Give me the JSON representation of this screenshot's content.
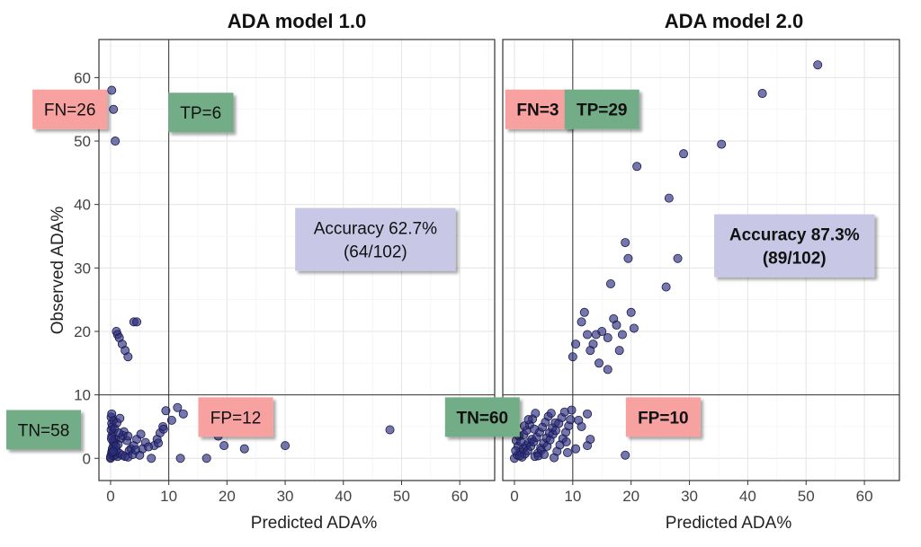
{
  "chart_data": [
    {
      "type": "scatter",
      "title": "ADA model 1.0",
      "xlabel": "Predicted ADA%",
      "ylabel": "Observed ADA%",
      "xlim": [
        -2,
        66
      ],
      "ylim": [
        -3.5,
        66
      ],
      "xticks": [
        0,
        10,
        20,
        30,
        40,
        50,
        60
      ],
      "yticks": [
        0,
        10,
        20,
        30,
        40,
        50,
        60
      ],
      "tick_labels": [
        "0",
        "10",
        "20",
        "30",
        "40",
        "50",
        "60"
      ],
      "threshold": {
        "x": 10,
        "y": 10
      },
      "grid": true,
      "point_color": "#2b2d7e",
      "annotations": [
        {
          "text": "FN=26",
          "x": -7,
          "y": 55,
          "color": "#f7a1a1",
          "bold": false
        },
        {
          "text": "TP=6",
          "x": 15.5,
          "y": 54.5,
          "color": "#73ad87",
          "bold": false
        },
        {
          "text": "Accuracy 62.7%",
          "text2": "(64/102)",
          "x": 45.5,
          "y": 34.5,
          "color": "#c8c8e6",
          "bold": false
        },
        {
          "text": "FP=12",
          "x": 21.5,
          "y": 6.5,
          "color": "#f7a1a1",
          "bold": false
        },
        {
          "text": "TN=58",
          "x": -11.5,
          "y": 4.5,
          "color": "#73ad87",
          "bold": false
        }
      ],
      "points": [
        [
          0,
          0
        ],
        [
          0.1,
          0.5
        ],
        [
          0.2,
          1
        ],
        [
          0.3,
          1.5
        ],
        [
          0.5,
          2
        ],
        [
          0.6,
          2.5
        ],
        [
          0.8,
          3
        ],
        [
          0.2,
          3.5
        ],
        [
          0.4,
          4
        ],
        [
          0.1,
          4.5
        ],
        [
          0.3,
          5
        ],
        [
          0.2,
          5.5
        ],
        [
          0.5,
          6
        ],
        [
          0.1,
          6.5
        ],
        [
          0.2,
          7
        ],
        [
          0,
          0.2
        ],
        [
          0.6,
          0.4
        ],
        [
          0.9,
          0.6
        ],
        [
          1.2,
          0.3
        ],
        [
          1,
          1.2
        ],
        [
          1.5,
          0.8
        ],
        [
          2,
          0.5
        ],
        [
          2.5,
          0.3
        ],
        [
          3,
          0.2
        ],
        [
          3.5,
          1.5
        ],
        [
          4,
          2
        ],
        [
          4.5,
          3
        ],
        [
          5,
          0.5
        ],
        [
          5.5,
          1.5
        ],
        [
          6,
          2.5
        ],
        [
          7,
          0
        ],
        [
          7.5,
          2
        ],
        [
          8,
          3
        ],
        [
          8.5,
          4
        ],
        [
          9,
          5
        ],
        [
          9.5,
          7.5
        ],
        [
          1.3,
          2.2
        ],
        [
          1.8,
          3.2
        ],
        [
          2.3,
          4.2
        ],
        [
          2.8,
          2.8
        ],
        [
          3.2,
          1.2
        ],
        [
          3.8,
          0.6
        ],
        [
          4.3,
          1.3
        ],
        [
          0.7,
          4.7
        ],
        [
          1.1,
          5.6
        ],
        [
          1.6,
          6.3
        ],
        [
          2.1,
          3.6
        ],
        [
          0.4,
          2.7
        ],
        [
          0.9,
          1.9
        ],
        [
          6.5,
          1.8
        ],
        [
          8.2,
          2.4
        ],
        [
          0.25,
          0.9
        ],
        [
          0.45,
          1.1
        ],
        [
          0.15,
          3.1
        ],
        [
          1.4,
          4
        ],
        [
          3,
          3.5
        ],
        [
          5.2,
          3.8
        ],
        [
          9.1,
          4.6
        ],
        [
          10.5,
          6
        ],
        [
          11.5,
          8
        ],
        [
          12.5,
          7
        ],
        [
          16.5,
          8.5
        ],
        [
          18.5,
          3.5
        ],
        [
          19.5,
          2
        ],
        [
          23,
          1.5
        ],
        [
          30,
          2
        ],
        [
          48,
          4.5
        ],
        [
          12,
          0
        ],
        [
          16.5,
          0
        ],
        [
          0.2,
          58
        ],
        [
          0.5,
          55
        ],
        [
          0.8,
          50
        ],
        [
          1,
          20
        ],
        [
          1.2,
          19.5
        ],
        [
          1.5,
          19
        ],
        [
          2,
          18
        ],
        [
          2.5,
          17
        ],
        [
          3,
          16
        ],
        [
          4,
          21.5
        ],
        [
          4.5,
          21.5
        ]
      ]
    },
    {
      "type": "scatter",
      "title": "ADA model 2.0",
      "xlabel": "Predicted ADA%",
      "ylabel": "",
      "xlim": [
        -2,
        66
      ],
      "ylim": [
        -3.5,
        66
      ],
      "xticks": [
        0,
        10,
        20,
        30,
        40,
        50,
        60
      ],
      "yticks": [
        0,
        10,
        20,
        30,
        40,
        50,
        60
      ],
      "tick_labels": [
        "0",
        "10",
        "20",
        "30",
        "40",
        "50",
        "60"
      ],
      "threshold": {
        "x": 10,
        "y": 10
      },
      "grid": true,
      "point_color": "#2b2d7e",
      "annotations": [
        {
          "text": "FN=3",
          "x": 4,
          "y": 55,
          "color": "#f7a1a1",
          "bold": true
        },
        {
          "text": "TP=29",
          "x": 15,
          "y": 55,
          "color": "#73ad87",
          "bold": true
        },
        {
          "text": "Accuracy 87.3%",
          "text2": "(89/102)",
          "x": 48,
          "y": 33.5,
          "color": "#c8c8e6",
          "bold": true
        },
        {
          "text": "FP=10",
          "x": 25.5,
          "y": 6.5,
          "color": "#f7a1a1",
          "bold": true
        },
        {
          "text": "TN=60",
          "x": -5.5,
          "y": 6.5,
          "color": "#73ad87",
          "bold": true
        }
      ],
      "points": [
        [
          0,
          0
        ],
        [
          0.5,
          0.5
        ],
        [
          1,
          1
        ],
        [
          1.5,
          1.5
        ],
        [
          2,
          2
        ],
        [
          2.5,
          2.5
        ],
        [
          3,
          3
        ],
        [
          3.5,
          0.3
        ],
        [
          4,
          0.8
        ],
        [
          4.5,
          1.6
        ],
        [
          5,
          2.4
        ],
        [
          5.5,
          3.2
        ],
        [
          6,
          4
        ],
        [
          6.5,
          4.8
        ],
        [
          7,
          5.6
        ],
        [
          0.3,
          2.8
        ],
        [
          0.8,
          3.5
        ],
        [
          1.3,
          0.2
        ],
        [
          1.8,
          0.7
        ],
        [
          2.3,
          1.2
        ],
        [
          2.8,
          1.9
        ],
        [
          3.3,
          2.6
        ],
        [
          3.8,
          3.3
        ],
        [
          4.3,
          4.1
        ],
        [
          4.8,
          4.9
        ],
        [
          5.3,
          5.7
        ],
        [
          5.8,
          6.6
        ],
        [
          6.3,
          7.1
        ],
        [
          6.8,
          0.1
        ],
        [
          7.3,
          1.1
        ],
        [
          7.8,
          2.1
        ],
        [
          8.3,
          3.1
        ],
        [
          8.8,
          4.1
        ],
        [
          9.3,
          5.1
        ],
        [
          9.6,
          6.1
        ],
        [
          9.8,
          7.6
        ],
        [
          0.6,
          1.9
        ],
        [
          1.1,
          2.6
        ],
        [
          1.6,
          3.7
        ],
        [
          2.1,
          4.4
        ],
        [
          2.6,
          5.3
        ],
        [
          3.1,
          6.2
        ],
        [
          3.6,
          7.1
        ],
        [
          4.1,
          0.4
        ],
        [
          4.6,
          1.3
        ],
        [
          5.1,
          0.6
        ],
        [
          5.6,
          1.9
        ],
        [
          6.1,
          2.9
        ],
        [
          6.6,
          3.8
        ],
        [
          7.1,
          4.4
        ],
        [
          7.6,
          5.5
        ],
        [
          8.1,
          6.4
        ],
        [
          8.6,
          7.3
        ],
        [
          9.1,
          0.9
        ],
        [
          0.2,
          1.2
        ],
        [
          0.9,
          0.4
        ],
        [
          1.7,
          5.1
        ],
        [
          2.4,
          6.1
        ],
        [
          3.4,
          4.6
        ],
        [
          8.9,
          2.6
        ],
        [
          10.5,
          1.5
        ],
        [
          11,
          6
        ],
        [
          11.5,
          5
        ],
        [
          12.5,
          2
        ],
        [
          12.5,
          7
        ],
        [
          13,
          3
        ],
        [
          19,
          0.5
        ],
        [
          20,
          6
        ],
        [
          10,
          16
        ],
        [
          16,
          19
        ],
        [
          10.5,
          18
        ],
        [
          11.5,
          21.5
        ],
        [
          12,
          23
        ],
        [
          12.5,
          19.5
        ],
        [
          13,
          17
        ],
        [
          13.5,
          18
        ],
        [
          14,
          19.5
        ],
        [
          14.5,
          15
        ],
        [
          15,
          20
        ],
        [
          16,
          14
        ],
        [
          16.5,
          27.5
        ],
        [
          17,
          22
        ],
        [
          17.5,
          21
        ],
        [
          18,
          17
        ],
        [
          18.5,
          19.5
        ],
        [
          19,
          34
        ],
        [
          19.5,
          31.5
        ],
        [
          20,
          23
        ],
        [
          20.5,
          20.5
        ],
        [
          21,
          46
        ],
        [
          26,
          27
        ],
        [
          26.5,
          41
        ],
        [
          28,
          31.5
        ],
        [
          29,
          48
        ],
        [
          35.5,
          49.5
        ],
        [
          42.5,
          57.5
        ],
        [
          52,
          62
        ]
      ]
    }
  ]
}
